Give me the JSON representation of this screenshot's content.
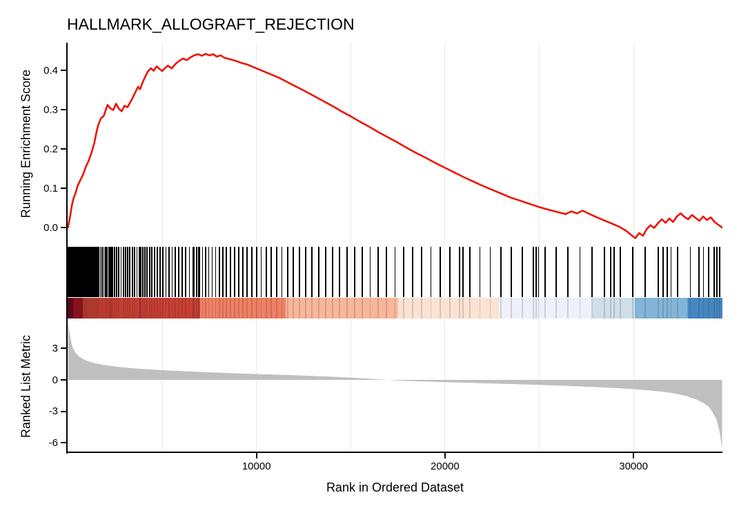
{
  "title": "HALLMARK_ALLOGRAFT_REJECTION",
  "colors": {
    "es_line": "#ee1100",
    "hit_tick": "#000000",
    "metric_fill": "#bfbfbf",
    "grid": "#e9e9e9",
    "axis": "#000000"
  },
  "chart_data": {
    "type": "line",
    "subtype": "gsea-enrichment-plot",
    "title": "HALLMARK_ALLOGRAFT_REJECTION",
    "xlabel": "Rank in Ordered Dataset",
    "x_max": 34700,
    "x_ticks": [
      10000,
      20000,
      30000
    ],
    "x_gridlines": [
      5000,
      10000,
      15000,
      20000,
      25000,
      30000
    ],
    "legend_position": "none",
    "panels": {
      "running_es": {
        "ylabel": "Running Enrichment Score",
        "ytick_labels": [
          "0.4",
          "0.3",
          "0.2",
          "0.1",
          "0.0"
        ],
        "ytick_values": [
          0.4,
          0.3,
          0.2,
          0.1,
          0.0
        ],
        "ylim": [
          -0.04,
          0.47
        ],
        "peak_es": 0.442,
        "series": [
          [
            0,
            0.0
          ],
          [
            120,
            0.03
          ],
          [
            200,
            0.055
          ],
          [
            300,
            0.075
          ],
          [
            420,
            0.09
          ],
          [
            500,
            0.105
          ],
          [
            650,
            0.12
          ],
          [
            800,
            0.135
          ],
          [
            950,
            0.155
          ],
          [
            1100,
            0.17
          ],
          [
            1250,
            0.19
          ],
          [
            1400,
            0.215
          ],
          [
            1500,
            0.24
          ],
          [
            1600,
            0.26
          ],
          [
            1750,
            0.278
          ],
          [
            1900,
            0.284
          ],
          [
            2000,
            0.298
          ],
          [
            2100,
            0.312
          ],
          [
            2250,
            0.303
          ],
          [
            2400,
            0.299
          ],
          [
            2550,
            0.315
          ],
          [
            2700,
            0.302
          ],
          [
            2850,
            0.296
          ],
          [
            3000,
            0.31
          ],
          [
            3150,
            0.306
          ],
          [
            3300,
            0.318
          ],
          [
            3450,
            0.332
          ],
          [
            3600,
            0.347
          ],
          [
            3720,
            0.358
          ],
          [
            3820,
            0.352
          ],
          [
            3950,
            0.368
          ],
          [
            4100,
            0.384
          ],
          [
            4250,
            0.398
          ],
          [
            4400,
            0.405
          ],
          [
            4550,
            0.399
          ],
          [
            4700,
            0.41
          ],
          [
            4850,
            0.404
          ],
          [
            5000,
            0.398
          ],
          [
            5150,
            0.406
          ],
          [
            5300,
            0.412
          ],
          [
            5500,
            0.405
          ],
          [
            5700,
            0.416
          ],
          [
            5900,
            0.424
          ],
          [
            6100,
            0.43
          ],
          [
            6300,
            0.426
          ],
          [
            6500,
            0.433
          ],
          [
            6700,
            0.438
          ],
          [
            6900,
            0.441
          ],
          [
            7100,
            0.437
          ],
          [
            7300,
            0.442
          ],
          [
            7500,
            0.438
          ],
          [
            7700,
            0.441
          ],
          [
            7900,
            0.435
          ],
          [
            8100,
            0.438
          ],
          [
            8300,
            0.432
          ],
          [
            8600,
            0.428
          ],
          [
            8900,
            0.424
          ],
          [
            9200,
            0.419
          ],
          [
            9500,
            0.415
          ],
          [
            9800,
            0.409
          ],
          [
            10100,
            0.403
          ],
          [
            10400,
            0.397
          ],
          [
            10800,
            0.389
          ],
          [
            11200,
            0.381
          ],
          [
            11600,
            0.371
          ],
          [
            12000,
            0.361
          ],
          [
            12500,
            0.349
          ],
          [
            13000,
            0.336
          ],
          [
            13500,
            0.323
          ],
          [
            14000,
            0.31
          ],
          [
            14500,
            0.296
          ],
          [
            15000,
            0.283
          ],
          [
            15500,
            0.269
          ],
          [
            16000,
            0.256
          ],
          [
            16500,
            0.242
          ],
          [
            17000,
            0.229
          ],
          [
            17500,
            0.216
          ],
          [
            18000,
            0.202
          ],
          [
            18500,
            0.189
          ],
          [
            19000,
            0.177
          ],
          [
            19500,
            0.164
          ],
          [
            20000,
            0.152
          ],
          [
            20500,
            0.14
          ],
          [
            21000,
            0.128
          ],
          [
            21500,
            0.117
          ],
          [
            22000,
            0.106
          ],
          [
            22500,
            0.096
          ],
          [
            23000,
            0.086
          ],
          [
            23500,
            0.076
          ],
          [
            24000,
            0.068
          ],
          [
            24500,
            0.06
          ],
          [
            25000,
            0.052
          ],
          [
            25500,
            0.045
          ],
          [
            26000,
            0.039
          ],
          [
            26400,
            0.034
          ],
          [
            26700,
            0.041
          ],
          [
            27000,
            0.036
          ],
          [
            27300,
            0.043
          ],
          [
            27600,
            0.036
          ],
          [
            28000,
            0.027
          ],
          [
            28400,
            0.019
          ],
          [
            28800,
            0.011
          ],
          [
            29200,
            0.003
          ],
          [
            29600,
            -0.008
          ],
          [
            29900,
            -0.02
          ],
          [
            30100,
            -0.027
          ],
          [
            30300,
            -0.014
          ],
          [
            30500,
            -0.021
          ],
          [
            30700,
            -0.004
          ],
          [
            30900,
            0.006
          ],
          [
            31100,
            -0.001
          ],
          [
            31300,
            0.011
          ],
          [
            31500,
            0.021
          ],
          [
            31700,
            0.012
          ],
          [
            31900,
            0.023
          ],
          [
            32100,
            0.014
          ],
          [
            32300,
            0.028
          ],
          [
            32500,
            0.036
          ],
          [
            32700,
            0.027
          ],
          [
            32900,
            0.021
          ],
          [
            33100,
            0.032
          ],
          [
            33300,
            0.024
          ],
          [
            33500,
            0.017
          ],
          [
            33700,
            0.028
          ],
          [
            33900,
            0.019
          ],
          [
            34100,
            0.026
          ],
          [
            34300,
            0.014
          ],
          [
            34500,
            0.007
          ],
          [
            34700,
            0.0
          ]
        ]
      },
      "hits": {
        "ranks": [
          15,
          55,
          85,
          110,
          160,
          185,
          230,
          260,
          320,
          360,
          410,
          440,
          500,
          540,
          590,
          640,
          690,
          740,
          800,
          850,
          910,
          970,
          1020,
          1080,
          1140,
          1210,
          1270,
          1340,
          1410,
          1490,
          1560,
          1640,
          1720,
          1810,
          1900,
          1990,
          2080,
          2170,
          2250,
          2290,
          2370,
          2480,
          2590,
          2700,
          2820,
          2940,
          3060,
          3170,
          3290,
          3420,
          3540,
          3660,
          3790,
          3830,
          3870,
          3970,
          4080,
          4200,
          4330,
          4460,
          4600,
          4740,
          4890,
          5040,
          5200,
          5360,
          5530,
          5700,
          5880,
          6060,
          6250,
          6440,
          6640,
          6690,
          6840,
          6930,
          6980,
          7140,
          7300,
          7470,
          7650,
          7830,
          8020,
          8210,
          8410,
          8620,
          8830,
          9050,
          9280,
          9510,
          9750,
          10000,
          10250,
          10510,
          10780,
          11060,
          11350,
          11650,
          11960,
          12280,
          12610,
          12950,
          13300,
          13660,
          14030,
          14410,
          14800,
          15200,
          15610,
          16030,
          16460,
          16900,
          17350,
          17810,
          18280,
          18760,
          19250,
          19750,
          20260,
          20780,
          20950,
          21310,
          21850,
          22400,
          22960,
          23530,
          24110,
          24700,
          24850,
          24960,
          25300,
          25910,
          26530,
          27160,
          27800,
          28450,
          28800,
          28960,
          29290,
          29950,
          30620,
          31300,
          31560,
          31780,
          31990,
          32340,
          33020,
          33460,
          33710,
          34000,
          34280,
          34420,
          34560
        ]
      },
      "color_band": {
        "segments": [
          {
            "from": 0,
            "to": 300,
            "color": "#70041f"
          },
          {
            "from": 300,
            "to": 800,
            "color": "#a11420"
          },
          {
            "from": 800,
            "to": 7000,
            "color": "#c94034"
          },
          {
            "from": 7000,
            "to": 11550,
            "color": "#ef8064"
          },
          {
            "from": 11550,
            "to": 17500,
            "color": "#f8b69a"
          },
          {
            "from": 17500,
            "to": 22850,
            "color": "#fbe3d3"
          },
          {
            "from": 22850,
            "to": 27800,
            "color": "#eef1f9"
          },
          {
            "from": 27800,
            "to": 30050,
            "color": "#cfdfe9"
          },
          {
            "from": 30050,
            "to": 32850,
            "color": "#82b5d8"
          },
          {
            "from": 32850,
            "to": 34700,
            "color": "#4587c2"
          }
        ]
      },
      "ranked_metric": {
        "ylabel": "Ranked List Metric",
        "ytick_labels": [
          "3",
          "0",
          "-3",
          "-6"
        ],
        "ytick_values": [
          3,
          0,
          -3,
          -6
        ],
        "ylim": [
          -7.0,
          5.9
        ],
        "series": [
          [
            0,
            5.9
          ],
          [
            60,
            4.8
          ],
          [
            150,
            3.8
          ],
          [
            250,
            3.1
          ],
          [
            400,
            2.6
          ],
          [
            600,
            2.2
          ],
          [
            900,
            1.9
          ],
          [
            1300,
            1.65
          ],
          [
            1800,
            1.45
          ],
          [
            2500,
            1.28
          ],
          [
            3200,
            1.15
          ],
          [
            4000,
            1.04
          ],
          [
            5000,
            0.93
          ],
          [
            6000,
            0.84
          ],
          [
            7000,
            0.76
          ],
          [
            8000,
            0.69
          ],
          [
            9000,
            0.62
          ],
          [
            10000,
            0.56
          ],
          [
            11000,
            0.5
          ],
          [
            12000,
            0.44
          ],
          [
            13000,
            0.37
          ],
          [
            14000,
            0.3
          ],
          [
            15000,
            0.22
          ],
          [
            15600,
            0.16
          ],
          [
            16100,
            0.1
          ],
          [
            16500,
            0.05
          ],
          [
            16800,
            0.01
          ],
          [
            17100,
            -0.02
          ],
          [
            17500,
            -0.06
          ],
          [
            18000,
            -0.1
          ],
          [
            19000,
            -0.16
          ],
          [
            20000,
            -0.22
          ],
          [
            21000,
            -0.27
          ],
          [
            22000,
            -0.32
          ],
          [
            23000,
            -0.37
          ],
          [
            24000,
            -0.42
          ],
          [
            25000,
            -0.48
          ],
          [
            26000,
            -0.54
          ],
          [
            27000,
            -0.61
          ],
          [
            28000,
            -0.69
          ],
          [
            29000,
            -0.78
          ],
          [
            30000,
            -0.89
          ],
          [
            30800,
            -1.0
          ],
          [
            31500,
            -1.12
          ],
          [
            32200,
            -1.3
          ],
          [
            32800,
            -1.55
          ],
          [
            33300,
            -1.85
          ],
          [
            33700,
            -2.2
          ],
          [
            34000,
            -2.6
          ],
          [
            34200,
            -3.1
          ],
          [
            34400,
            -3.8
          ],
          [
            34550,
            -4.8
          ],
          [
            34650,
            -5.9
          ],
          [
            34700,
            -6.6
          ]
        ]
      }
    }
  }
}
